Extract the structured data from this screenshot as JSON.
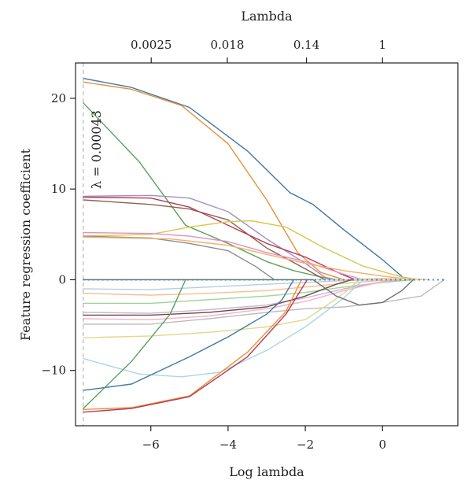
{
  "chart_data": {
    "type": "line",
    "title": "",
    "xlabel": "Log lambda",
    "ylabel": "Feature regression coefficient",
    "top_axis_label": "Lambda",
    "xlim": [
      -7.95,
      1.95
    ],
    "ylim": [
      -16.1,
      23.9
    ],
    "x_ticks": [
      {
        "value": -6,
        "label": "−6"
      },
      {
        "value": -4,
        "label": "−4"
      },
      {
        "value": -2,
        "label": "−2"
      },
      {
        "value": 0,
        "label": "0"
      }
    ],
    "y_ticks": [
      {
        "value": -10,
        "label": "−10"
      },
      {
        "value": 0,
        "label": "0"
      },
      {
        "value": 10,
        "label": "10"
      },
      {
        "value": 20,
        "label": "20"
      }
    ],
    "top_ticks": [
      {
        "value": -5.99,
        "label": "0.0025"
      },
      {
        "value": -4.02,
        "label": "0.018"
      },
      {
        "value": -1.97,
        "label": "0.14"
      },
      {
        "value": 0.0,
        "label": "1"
      }
    ],
    "grid": false,
    "legend": "none",
    "reference_line": {
      "x": -7.75,
      "label": "λ = 0.00043",
      "color": "#b8b8b8"
    },
    "zero_line_color": "#3a8fa8",
    "series": [
      {
        "color": "#3f78a8",
        "points": [
          [
            -7.75,
            22.2
          ],
          [
            -6.5,
            21.2
          ],
          [
            -5,
            19.0
          ],
          [
            -3.5,
            14.2
          ],
          [
            -2.4,
            9.6
          ],
          [
            -1.8,
            8.3
          ],
          [
            -1,
            5.5
          ],
          [
            0,
            2.2
          ],
          [
            0.6,
            0
          ]
        ]
      },
      {
        "color": "#e7913a",
        "points": [
          [
            -7.75,
            21.8
          ],
          [
            -6.5,
            21.0
          ],
          [
            -5.2,
            19.2
          ],
          [
            -4,
            15.0
          ],
          [
            -3,
            8.8
          ],
          [
            -2.2,
            3.0
          ],
          [
            -1.6,
            0.8
          ],
          [
            -1,
            0
          ]
        ]
      },
      {
        "color": "#58a25a",
        "points": [
          [
            -7.75,
            19.5
          ],
          [
            -6.3,
            13.0
          ],
          [
            -5.1,
            6.0
          ],
          [
            -4,
            4.0
          ],
          [
            -3,
            2.0
          ],
          [
            -2.3,
            1.0
          ],
          [
            -1.5,
            0.2
          ],
          [
            -1.2,
            0
          ]
        ]
      },
      {
        "color": "#a58ec3",
        "points": [
          [
            -7.75,
            9.2
          ],
          [
            -6,
            9.3
          ],
          [
            -5,
            9.0
          ],
          [
            -4,
            7.5
          ],
          [
            -3,
            4.5
          ],
          [
            -2,
            1.8
          ],
          [
            -1.5,
            0.3
          ],
          [
            -1.2,
            0
          ]
        ]
      },
      {
        "color": "#8e5f52",
        "points": [
          [
            -7.75,
            8.8
          ],
          [
            -6,
            8.3
          ],
          [
            -5,
            7.8
          ],
          [
            -4,
            6.6
          ],
          [
            -3,
            3.5
          ],
          [
            -2,
            1.2
          ],
          [
            -1.5,
            0
          ]
        ]
      },
      {
        "color": "#b83a55",
        "points": [
          [
            -7.75,
            9.1
          ],
          [
            -6,
            9.0
          ],
          [
            -5,
            8.0
          ],
          [
            -4,
            6.0
          ],
          [
            -3,
            4.0
          ],
          [
            -2,
            2.5
          ],
          [
            -1,
            0.5
          ],
          [
            -0.7,
            0
          ]
        ]
      },
      {
        "color": "#d8c74e",
        "points": [
          [
            -7.75,
            4.8
          ],
          [
            -6,
            5.0
          ],
          [
            -5,
            5.8
          ],
          [
            -4,
            6.4
          ],
          [
            -3.4,
            6.5
          ],
          [
            -2.5,
            5.8
          ],
          [
            -1.5,
            3.5
          ],
          [
            -0.5,
            1.5
          ],
          [
            0.5,
            0.3
          ],
          [
            1.0,
            0
          ]
        ]
      },
      {
        "color": "#e38fbf",
        "points": [
          [
            -7.75,
            5.2
          ],
          [
            -6,
            5.1
          ],
          [
            -5,
            4.8
          ],
          [
            -4,
            4.2
          ],
          [
            -3,
            3.0
          ],
          [
            -2,
            2.0
          ],
          [
            -1,
            0.6
          ],
          [
            -0.5,
            0
          ]
        ]
      },
      {
        "color": "#8c8c8c",
        "points": [
          [
            -7.75,
            4.8
          ],
          [
            -6,
            4.6
          ],
          [
            -5,
            4.0
          ],
          [
            -4,
            3.2
          ],
          [
            -3.3,
            1.5
          ],
          [
            -2.8,
            0
          ]
        ]
      },
      {
        "color": "#f2b06a",
        "points": [
          [
            -7.75,
            4.7
          ],
          [
            -5.5,
            4.5
          ],
          [
            -4,
            3.8
          ],
          [
            -3,
            2.8
          ],
          [
            -2,
            1.8
          ],
          [
            -1,
            1.0
          ],
          [
            0,
            0.4
          ],
          [
            0.8,
            0
          ]
        ]
      },
      {
        "color": "#f2c4a3",
        "points": [
          [
            -7.75,
            0
          ],
          [
            -1,
            0
          ],
          [
            0,
            0.15
          ],
          [
            0.8,
            0.1
          ],
          [
            1.2,
            0
          ]
        ]
      },
      {
        "color": "#9fd392",
        "points": [
          [
            -7.75,
            -2.6
          ],
          [
            -6,
            -2.6
          ],
          [
            -4.5,
            -2.2
          ],
          [
            -3,
            -1.8
          ],
          [
            -2,
            -1.4
          ],
          [
            -1,
            -0.8
          ],
          [
            0,
            -0.3
          ],
          [
            0.8,
            0
          ]
        ]
      },
      {
        "color": "#f6c08b",
        "points": [
          [
            -7.75,
            -1.5
          ],
          [
            -6,
            -1.7
          ],
          [
            -4.5,
            -1.5
          ],
          [
            -3,
            -1.2
          ],
          [
            -2,
            -0.8
          ],
          [
            -1,
            -0.4
          ],
          [
            0.2,
            0
          ]
        ]
      },
      {
        "color": "#b2cfe3",
        "points": [
          [
            -7.75,
            -1.0
          ],
          [
            -6,
            -1.1
          ],
          [
            -4.5,
            -0.8
          ],
          [
            -3,
            -0.5
          ],
          [
            -2,
            -0.3
          ],
          [
            -1,
            -0.1
          ],
          [
            0,
            0
          ]
        ]
      },
      {
        "color": "#c6b5d8",
        "points": [
          [
            -7.75,
            -3.6
          ],
          [
            -6,
            -3.7
          ],
          [
            -4.5,
            -3.3
          ],
          [
            -3,
            -2.8
          ],
          [
            -2,
            -2.0
          ],
          [
            -1,
            -1.0
          ],
          [
            0,
            -0.2
          ],
          [
            0.5,
            0
          ]
        ]
      },
      {
        "color": "#f5b0cf",
        "points": [
          [
            -7.75,
            -4.3
          ],
          [
            -6,
            -4.4
          ],
          [
            -4.5,
            -4.0
          ],
          [
            -3,
            -3.2
          ],
          [
            -2,
            -2.4
          ],
          [
            -1,
            -1.2
          ],
          [
            0,
            -0.2
          ],
          [
            0.3,
            0
          ]
        ]
      },
      {
        "color": "#6b4b3e",
        "points": [
          [
            -7.75,
            -3.9
          ],
          [
            -6,
            -3.9
          ],
          [
            -4.5,
            -3.6
          ],
          [
            -3,
            -3.0
          ],
          [
            -2,
            -1.8
          ],
          [
            -1.2,
            -0.5
          ],
          [
            -0.8,
            0
          ]
        ]
      },
      {
        "color": "#bcbcbc",
        "points": [
          [
            -7.75,
            -4.9
          ],
          [
            -6,
            -4.9
          ],
          [
            -4.5,
            -4.3
          ],
          [
            -3,
            -3.6
          ],
          [
            -2,
            -3.2
          ],
          [
            -1,
            -3.0
          ],
          [
            0,
            -2.5
          ],
          [
            1.0,
            -1.8
          ],
          [
            1.6,
            0
          ]
        ]
      },
      {
        "color": "#e0d88c",
        "points": [
          [
            -7.75,
            -6.4
          ],
          [
            -6,
            -6.2
          ],
          [
            -4.5,
            -5.8
          ],
          [
            -3,
            -5.2
          ],
          [
            -2,
            -4.4
          ],
          [
            -1.5,
            -3.0
          ],
          [
            -1,
            -1.5
          ],
          [
            -0.6,
            0
          ]
        ]
      },
      {
        "color": "#a9d6e5",
        "points": [
          [
            -7.75,
            -8.7
          ],
          [
            -6.3,
            -10.4
          ],
          [
            -5.2,
            -10.7
          ],
          [
            -4.2,
            -10.2
          ],
          [
            -3,
            -7.8
          ],
          [
            -2,
            -5.2
          ],
          [
            -1,
            -2.0
          ],
          [
            -0.5,
            0
          ]
        ]
      },
      {
        "color": "#3f78a8",
        "points": [
          [
            -7.75,
            -12.2
          ],
          [
            -6.5,
            -11.5
          ],
          [
            -5,
            -8.5
          ],
          [
            -4,
            -6.3
          ],
          [
            -3,
            -3.8
          ],
          [
            -2.6,
            -2.2
          ],
          [
            -2.3,
            0
          ]
        ]
      },
      {
        "color": "#58a25a",
        "points": [
          [
            -7.75,
            -14.2
          ],
          [
            -6.5,
            -9.0
          ],
          [
            -5.5,
            -3.8
          ],
          [
            -5.1,
            0
          ]
        ]
      },
      {
        "color": "#e7913a",
        "points": [
          [
            -7.75,
            -14.3
          ],
          [
            -6.5,
            -14.1
          ],
          [
            -5,
            -12.8
          ],
          [
            -3.5,
            -8.0
          ],
          [
            -2.5,
            -3.5
          ],
          [
            -2.1,
            0
          ]
        ]
      },
      {
        "color": "#b83a55",
        "points": [
          [
            -7.75,
            -14.6
          ],
          [
            -6.5,
            -14.2
          ],
          [
            -5,
            -12.9
          ],
          [
            -3.5,
            -8.5
          ],
          [
            -2.5,
            -3.8
          ],
          [
            -1.95,
            0
          ]
        ]
      },
      {
        "color": "#707070",
        "points": [
          [
            -7.75,
            0
          ],
          [
            -1.8,
            0
          ],
          [
            -1.2,
            -1.8
          ],
          [
            -0.6,
            -2.8
          ],
          [
            0.0,
            -2.5
          ],
          [
            0.5,
            -1.2
          ],
          [
            0.8,
            0
          ]
        ]
      }
    ]
  }
}
